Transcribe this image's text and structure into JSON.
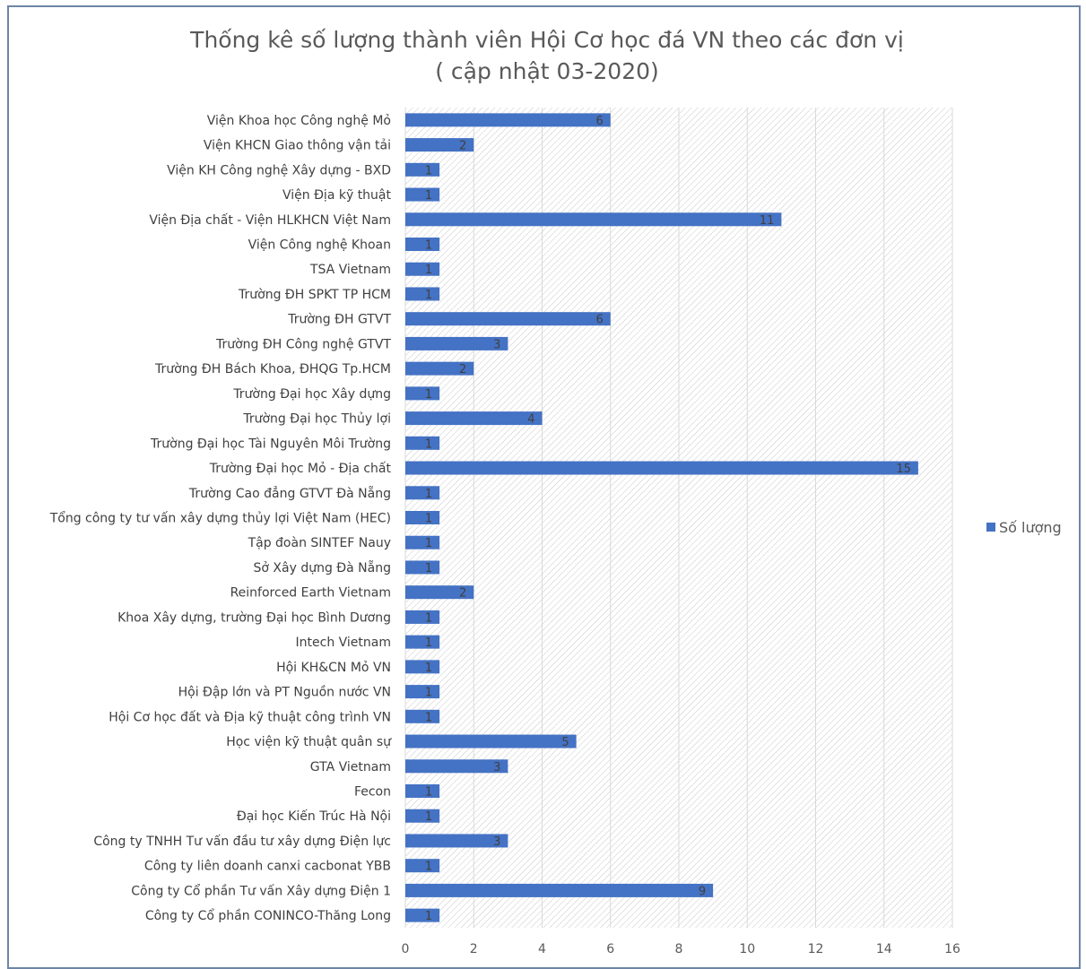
{
  "colors": {
    "bar": "#4472c4",
    "grid": "#d9d9d9",
    "frame": "#6d86a6",
    "text": "#595959"
  },
  "chart_data": {
    "type": "bar",
    "orientation": "horizontal",
    "title": "Thống kê số lượng thành viên Hội Cơ học đá VN theo các đơn vị",
    "subtitle": "( cập nhật 03-2020)",
    "xlabel": "",
    "ylabel": "",
    "xlim": [
      0,
      16
    ],
    "xticks": [
      0,
      2,
      4,
      6,
      8,
      10,
      12,
      14,
      16
    ],
    "grid": true,
    "legend_position": "right",
    "categories": [
      "Viện Khoa học Công nghệ Mỏ",
      "Viện KHCN Giao thông vận tải",
      "Viện KH Công nghệ Xây dựng - BXD",
      "Viện Địa kỹ thuật",
      "Viện Địa chất - Viện HLKHCN Việt Nam",
      "Viện Công nghệ Khoan",
      "TSA Vietnam",
      "Trường ĐH SPKT TP HCM",
      "Trường ĐH GTVT",
      "Trường ĐH Công nghệ GTVT",
      "Trường ĐH Bách Khoa, ĐHQG Tp.HCM",
      "Trường Đại học Xây dựng",
      "Trường Đại học Thủy lợi",
      "Trường Đại học Tài Nguyên Môi Trường",
      "Trường Đại học Mỏ - Địa chất",
      "Trường Cao đẳng GTVT Đà Nẵng",
      "Tổng công ty tư vấn xây dựng thủy lợi Việt Nam (HEC)",
      "Tập đoàn SINTEF Nauy",
      "Sở Xây dựng Đà Nẵng",
      "Reinforced Earth Vietnam",
      "Khoa Xây dựng, trường Đại học Bình Dương",
      "Intech Vietnam",
      "Hội KH&CN Mỏ VN",
      "Hội Đập lớn và PT Nguồn nước VN",
      "Hội Cơ học đất và Địa kỹ thuật công trình VN",
      "Học viện kỹ thuật quân sự",
      "GTA Vietnam",
      "Fecon",
      "Đại học Kiến Trúc Hà Nội",
      "Công ty TNHH Tư vấn đầu tư xây dựng Điện lực",
      "Công ty liên doanh canxi cacbonat YBB",
      "Công ty Cổ phần Tư vấn Xây dựng Điện 1",
      "Công ty Cổ phần CONINCO-Thăng Long"
    ],
    "series": [
      {
        "name": "Số lượng",
        "values": [
          6,
          2,
          1,
          1,
          11,
          1,
          1,
          1,
          6,
          3,
          2,
          1,
          4,
          1,
          15,
          1,
          1,
          1,
          1,
          2,
          1,
          1,
          1,
          1,
          1,
          5,
          3,
          1,
          1,
          3,
          1,
          9,
          1
        ]
      }
    ]
  }
}
